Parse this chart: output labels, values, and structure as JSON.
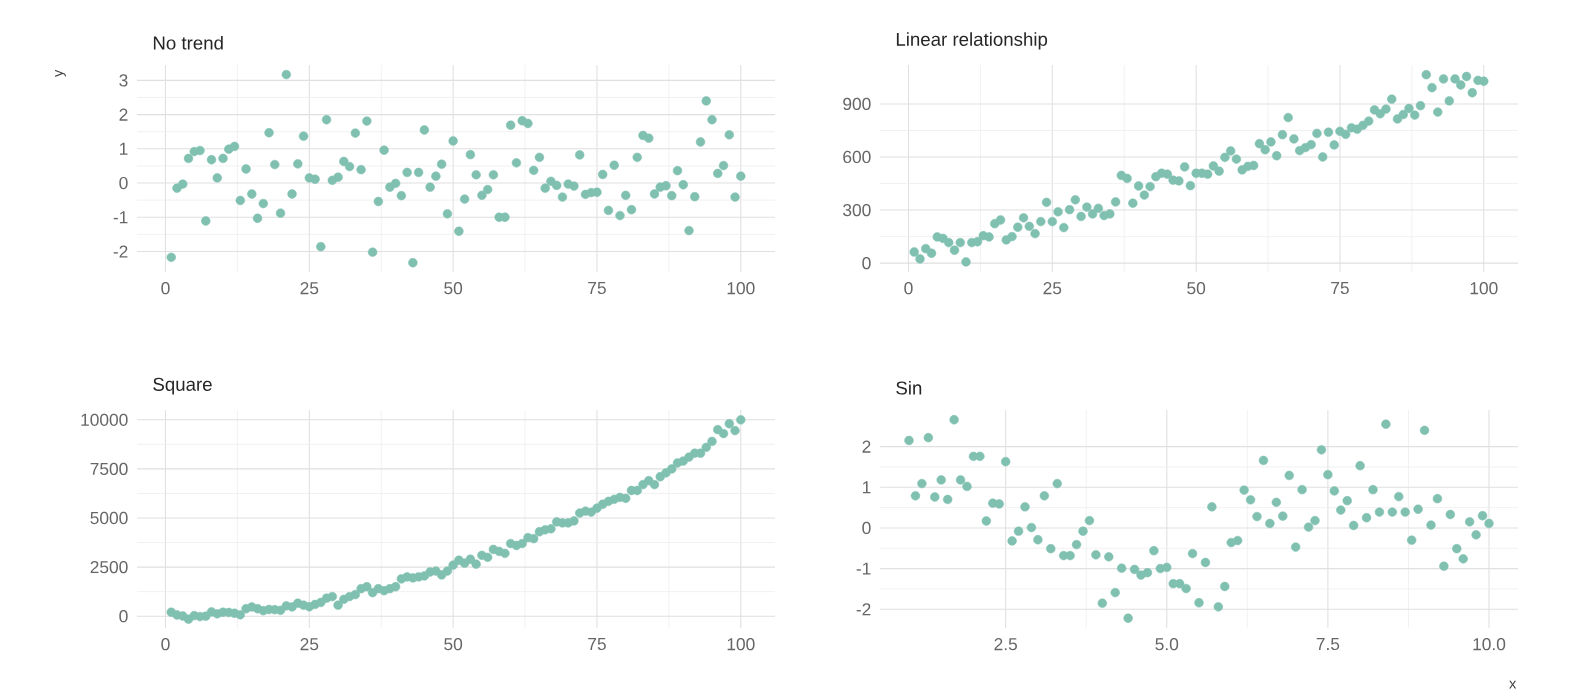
{
  "chart_data": [
    {
      "type": "scatter",
      "title": "No trend",
      "ylabel": "y",
      "color": "#80c0b0",
      "marker": "circle",
      "grid": true,
      "xlim": [
        -4.95,
        105.95
      ],
      "ylim": [
        -2.6,
        3.45
      ],
      "xticks": [
        0,
        25,
        50,
        75,
        100
      ],
      "yticks": [
        -2,
        -1,
        0,
        1,
        2,
        3
      ],
      "x": [
        1,
        2,
        3,
        4,
        5,
        6,
        7,
        8,
        9,
        10,
        11,
        12,
        13,
        14,
        15,
        16,
        17,
        18,
        19,
        20,
        21,
        22,
        23,
        24,
        25,
        26,
        27,
        28,
        29,
        30,
        31,
        32,
        33,
        34,
        35,
        36,
        37,
        38,
        39,
        40,
        41,
        42,
        43,
        44,
        45,
        46,
        47,
        48,
        49,
        50,
        51,
        52,
        53,
        54,
        55,
        56,
        57,
        58,
        59,
        60,
        61,
        62,
        63,
        64,
        65,
        66,
        67,
        68,
        69,
        70,
        71,
        72,
        73,
        74,
        75,
        76,
        77,
        78,
        79,
        80,
        81,
        82,
        83,
        84,
        85,
        86,
        87,
        88,
        89,
        90,
        91,
        92,
        93,
        94,
        95,
        96,
        97,
        98,
        99,
        100
      ],
      "values": [
        -2.17,
        -0.15,
        -0.03,
        0.72,
        0.92,
        0.95,
        -1.11,
        0.68,
        0.15,
        0.72,
        0.99,
        1.07,
        -0.51,
        0.41,
        -0.32,
        -1.03,
        -0.6,
        1.47,
        0.54,
        -0.88,
        3.17,
        -0.32,
        0.56,
        1.37,
        0.15,
        0.11,
        -1.86,
        1.85,
        0.08,
        0.17,
        0.63,
        0.48,
        1.46,
        0.39,
        1.81,
        -2.02,
        -0.54,
        0.96,
        -0.12,
        -0.01,
        -0.37,
        0.31,
        -2.33,
        0.31,
        1.55,
        -0.12,
        0.2,
        0.55,
        -0.9,
        1.23,
        -1.41,
        -0.47,
        0.83,
        0.24,
        -0.36,
        -0.19,
        0.24,
        -1.0,
        -1.0,
        1.69,
        0.59,
        1.82,
        1.74,
        0.37,
        0.75,
        -0.15,
        0.05,
        -0.07,
        -0.41,
        -0.03,
        -0.09,
        0.82,
        -0.33,
        -0.28,
        -0.27,
        0.25,
        -0.8,
        0.52,
        -0.95,
        -0.36,
        -0.78,
        0.75,
        1.39,
        1.31,
        -0.32,
        -0.12,
        -0.08,
        -0.37,
        0.36,
        -0.05,
        -1.39,
        -0.4,
        1.2,
        2.4,
        1.85,
        0.28,
        0.51,
        1.41,
        -0.41,
        0.2
      ]
    },
    {
      "type": "scatter",
      "title": "Linear relationship",
      "color": "#80c0b0",
      "marker": "circle",
      "grid": true,
      "xlim": [
        -4.95,
        105.95
      ],
      "ylim": [
        -50,
        1120
      ],
      "xticks": [
        0,
        25,
        50,
        75,
        100
      ],
      "yticks": [
        0,
        300,
        600,
        900
      ],
      "x": [
        1,
        2,
        3,
        4,
        5,
        6,
        7,
        8,
        9,
        10,
        11,
        12,
        13,
        14,
        15,
        16,
        17,
        18,
        19,
        20,
        21,
        22,
        23,
        24,
        25,
        26,
        27,
        28,
        29,
        30,
        31,
        32,
        33,
        34,
        35,
        36,
        37,
        38,
        39,
        40,
        41,
        42,
        43,
        44,
        45,
        46,
        47,
        48,
        49,
        50,
        51,
        52,
        53,
        54,
        55,
        56,
        57,
        58,
        59,
        60,
        61,
        62,
        63,
        64,
        65,
        66,
        67,
        68,
        69,
        70,
        71,
        72,
        73,
        74,
        75,
        76,
        77,
        78,
        79,
        80,
        81,
        82,
        83,
        84,
        85,
        86,
        87,
        88,
        89,
        90,
        91,
        92,
        93,
        94,
        95,
        96,
        97,
        98,
        99,
        100
      ],
      "values": [
        63,
        24,
        82,
        56,
        148,
        140,
        116,
        73,
        116,
        7,
        116,
        121,
        155,
        148,
        223,
        244,
        131,
        150,
        203,
        256,
        208,
        167,
        235,
        344,
        235,
        290,
        201,
        302,
        358,
        264,
        317,
        278,
        310,
        269,
        278,
        346,
        496,
        479,
        339,
        436,
        385,
        433,
        489,
        508,
        503,
        469,
        465,
        544,
        438,
        508,
        508,
        503,
        549,
        520,
        598,
        634,
        588,
        527,
        547,
        552,
        675,
        641,
        685,
        607,
        726,
        823,
        702,
        636,
        653,
        670,
        733,
        600,
        740,
        668,
        745,
        728,
        765,
        757,
        779,
        803,
        866,
        844,
        871,
        927,
        815,
        840,
        874,
        837,
        890,
        1065,
        992,
        854,
        1041,
        917,
        1041,
        1007,
        1055,
        963,
        1033,
        1028
      ]
    },
    {
      "type": "scatter",
      "title": "Square",
      "color": "#80c0b0",
      "marker": "circle",
      "grid": true,
      "xlim": [
        -4.95,
        105.95
      ],
      "ylim": [
        -600,
        10500
      ],
      "xticks": [
        0,
        25,
        50,
        75,
        100
      ],
      "yticks": [
        0,
        2500,
        5000,
        7500,
        10000
      ],
      "x": [
        1,
        2,
        3,
        4,
        5,
        6,
        7,
        8,
        9,
        10,
        11,
        12,
        13,
        14,
        15,
        16,
        17,
        18,
        19,
        20,
        21,
        22,
        23,
        24,
        25,
        26,
        27,
        28,
        29,
        30,
        31,
        32,
        33,
        34,
        35,
        36,
        37,
        38,
        39,
        40,
        41,
        42,
        43,
        44,
        45,
        46,
        47,
        48,
        49,
        50,
        51,
        52,
        53,
        54,
        55,
        56,
        57,
        58,
        59,
        60,
        61,
        62,
        63,
        64,
        65,
        66,
        67,
        68,
        69,
        70,
        71,
        72,
        73,
        74,
        75,
        76,
        77,
        78,
        79,
        80,
        81,
        82,
        83,
        84,
        85,
        86,
        87,
        88,
        89,
        90,
        91,
        92,
        93,
        94,
        95,
        96,
        97,
        98,
        99,
        100
      ],
      "values": [
        200,
        60,
        10,
        -150,
        30,
        -20,
        0,
        220,
        120,
        200,
        190,
        150,
        70,
        380,
        470,
        380,
        280,
        340,
        330,
        300,
        530,
        470,
        660,
        560,
        480,
        600,
        700,
        920,
        1000,
        560,
        860,
        1000,
        1100,
        1400,
        1500,
        1200,
        1400,
        1300,
        1400,
        1500,
        1900,
        2000,
        1950,
        2000,
        2050,
        2250,
        2300,
        2100,
        2300,
        2600,
        2850,
        2700,
        2900,
        2650,
        3100,
        3000,
        3400,
        3300,
        3200,
        3700,
        3600,
        3700,
        4000,
        3950,
        4300,
        4400,
        4450,
        4800,
        4750,
        4750,
        4850,
        5250,
        5350,
        5300,
        5500,
        5700,
        5850,
        5950,
        6050,
        6000,
        6400,
        6400,
        6700,
        6900,
        6700,
        7100,
        7300,
        7500,
        7800,
        7900,
        8100,
        8300,
        8300,
        8600,
        8900,
        9500,
        9300,
        9800,
        9450,
        10000
      ]
    },
    {
      "type": "scatter",
      "title": "Sin",
      "xlabel": "x",
      "color": "#80c0b0",
      "marker": "circle",
      "grid": true,
      "xlim": [
        0.55,
        10.45
      ],
      "ylim": [
        -2.46,
        2.9
      ],
      "xticks": [
        2.5,
        {
          "value": 5,
          "label": "5.0"
        },
        7.5,
        {
          "value": 10,
          "label": "10.0"
        }
      ],
      "yticks": [
        -2,
        -1,
        0,
        1,
        2
      ],
      "x": [
        1.0,
        1.1,
        1.2,
        1.3,
        1.4,
        1.5,
        1.6,
        1.7,
        1.8,
        1.9,
        2.0,
        2.1,
        2.2,
        2.3,
        2.4,
        2.5,
        2.6,
        2.7,
        2.8,
        2.9,
        3.0,
        3.1,
        3.2,
        3.3,
        3.4,
        3.5,
        3.6,
        3.7,
        3.8,
        3.9,
        4.0,
        4.1,
        4.2,
        4.3,
        4.4,
        4.5,
        4.6,
        4.7,
        4.8,
        4.9,
        5.0,
        5.1,
        5.2,
        5.3,
        5.4,
        5.5,
        5.6,
        5.7,
        5.8,
        5.9,
        6.0,
        6.1,
        6.2,
        6.3,
        6.4,
        6.5,
        6.6,
        6.7,
        6.8,
        6.9,
        7.0,
        7.1,
        7.2,
        7.3,
        7.4,
        7.5,
        7.6,
        7.7,
        7.8,
        7.9,
        8.0,
        8.1,
        8.2,
        8.3,
        8.4,
        8.5,
        8.6,
        8.7,
        8.8,
        8.9,
        9.0,
        9.1,
        9.2,
        9.3,
        9.4,
        9.5,
        9.6,
        9.7,
        9.8,
        9.9,
        10.0
      ],
      "values": [
        2.15,
        0.79,
        1.09,
        2.22,
        0.76,
        1.18,
        0.7,
        2.66,
        1.18,
        1.02,
        1.76,
        1.76,
        0.17,
        0.61,
        0.59,
        1.63,
        -0.32,
        -0.08,
        0.52,
        0.01,
        -0.29,
        0.79,
        -0.51,
        1.09,
        -0.68,
        -0.68,
        -0.41,
        -0.08,
        0.18,
        -0.66,
        -1.85,
        -0.71,
        -1.59,
        -0.99,
        -2.22,
        -1.02,
        -1.16,
        -1.1,
        -0.56,
        -1.0,
        -0.97,
        -1.37,
        -1.37,
        -1.49,
        -0.63,
        -1.84,
        -0.85,
        0.52,
        -1.94,
        -1.44,
        -0.36,
        -0.31,
        0.93,
        0.69,
        0.28,
        1.66,
        0.11,
        0.63,
        0.29,
        1.29,
        -0.47,
        0.94,
        0.02,
        0.18,
        1.92,
        1.31,
        0.91,
        0.44,
        0.67,
        0.06,
        1.53,
        0.25,
        0.94,
        0.39,
        2.55,
        0.39,
        0.77,
        0.39,
        -0.3,
        0.46,
        2.4,
        0.07,
        0.72,
        -0.94,
        0.33,
        -0.51,
        -0.76,
        0.15,
        -0.17,
        0.3,
        0.11
      ]
    }
  ]
}
